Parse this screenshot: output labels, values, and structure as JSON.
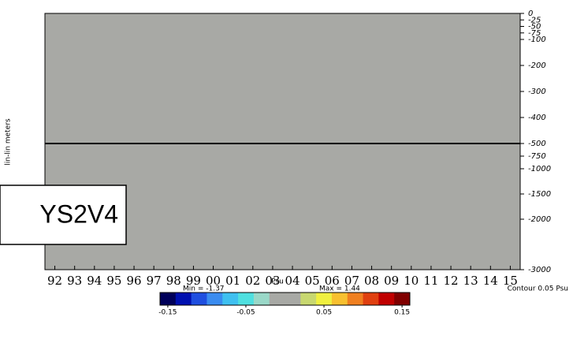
{
  "chart_data": {
    "type": "heatmap",
    "y_label": "lin-lin meters",
    "categories": [
      "92",
      "93",
      "94",
      "95",
      "96",
      "97",
      "98",
      "99",
      "00",
      "01",
      "02",
      "03",
      "04",
      "05",
      "06",
      "07",
      "08",
      "09",
      "10",
      "11",
      "12",
      "13",
      "14",
      "15"
    ],
    "ylim": [
      0,
      -3000
    ],
    "ybreak": -500,
    "yticks": [
      0,
      -25,
      -50,
      -75,
      -100,
      -200,
      -300,
      -400,
      -500,
      -750,
      -1000,
      -1500,
      -2000,
      -3000
    ],
    "field_color": "#a8a9a5",
    "colorbar_title": "Psu",
    "min_label": "Min = -1.37",
    "max_label": "Max = 1.44",
    "contour_label": "Contour 0.05 Psu",
    "clim": [
      -0.16,
      0.16
    ],
    "cticks": [
      -0.15,
      -0.05,
      0.05,
      0.15
    ],
    "colors": [
      "#00005a",
      "#0010b0",
      "#1f4fe0",
      "#3a8cf0",
      "#3fc0f0",
      "#4fe0e0",
      "#9ad8c8",
      "#a8a9a5",
      "#a8a9a5",
      "#c8d870",
      "#f0f040",
      "#f8c030",
      "#f08020",
      "#e04010",
      "#c00000",
      "#800000"
    ],
    "box_label": "YS2V4"
  }
}
